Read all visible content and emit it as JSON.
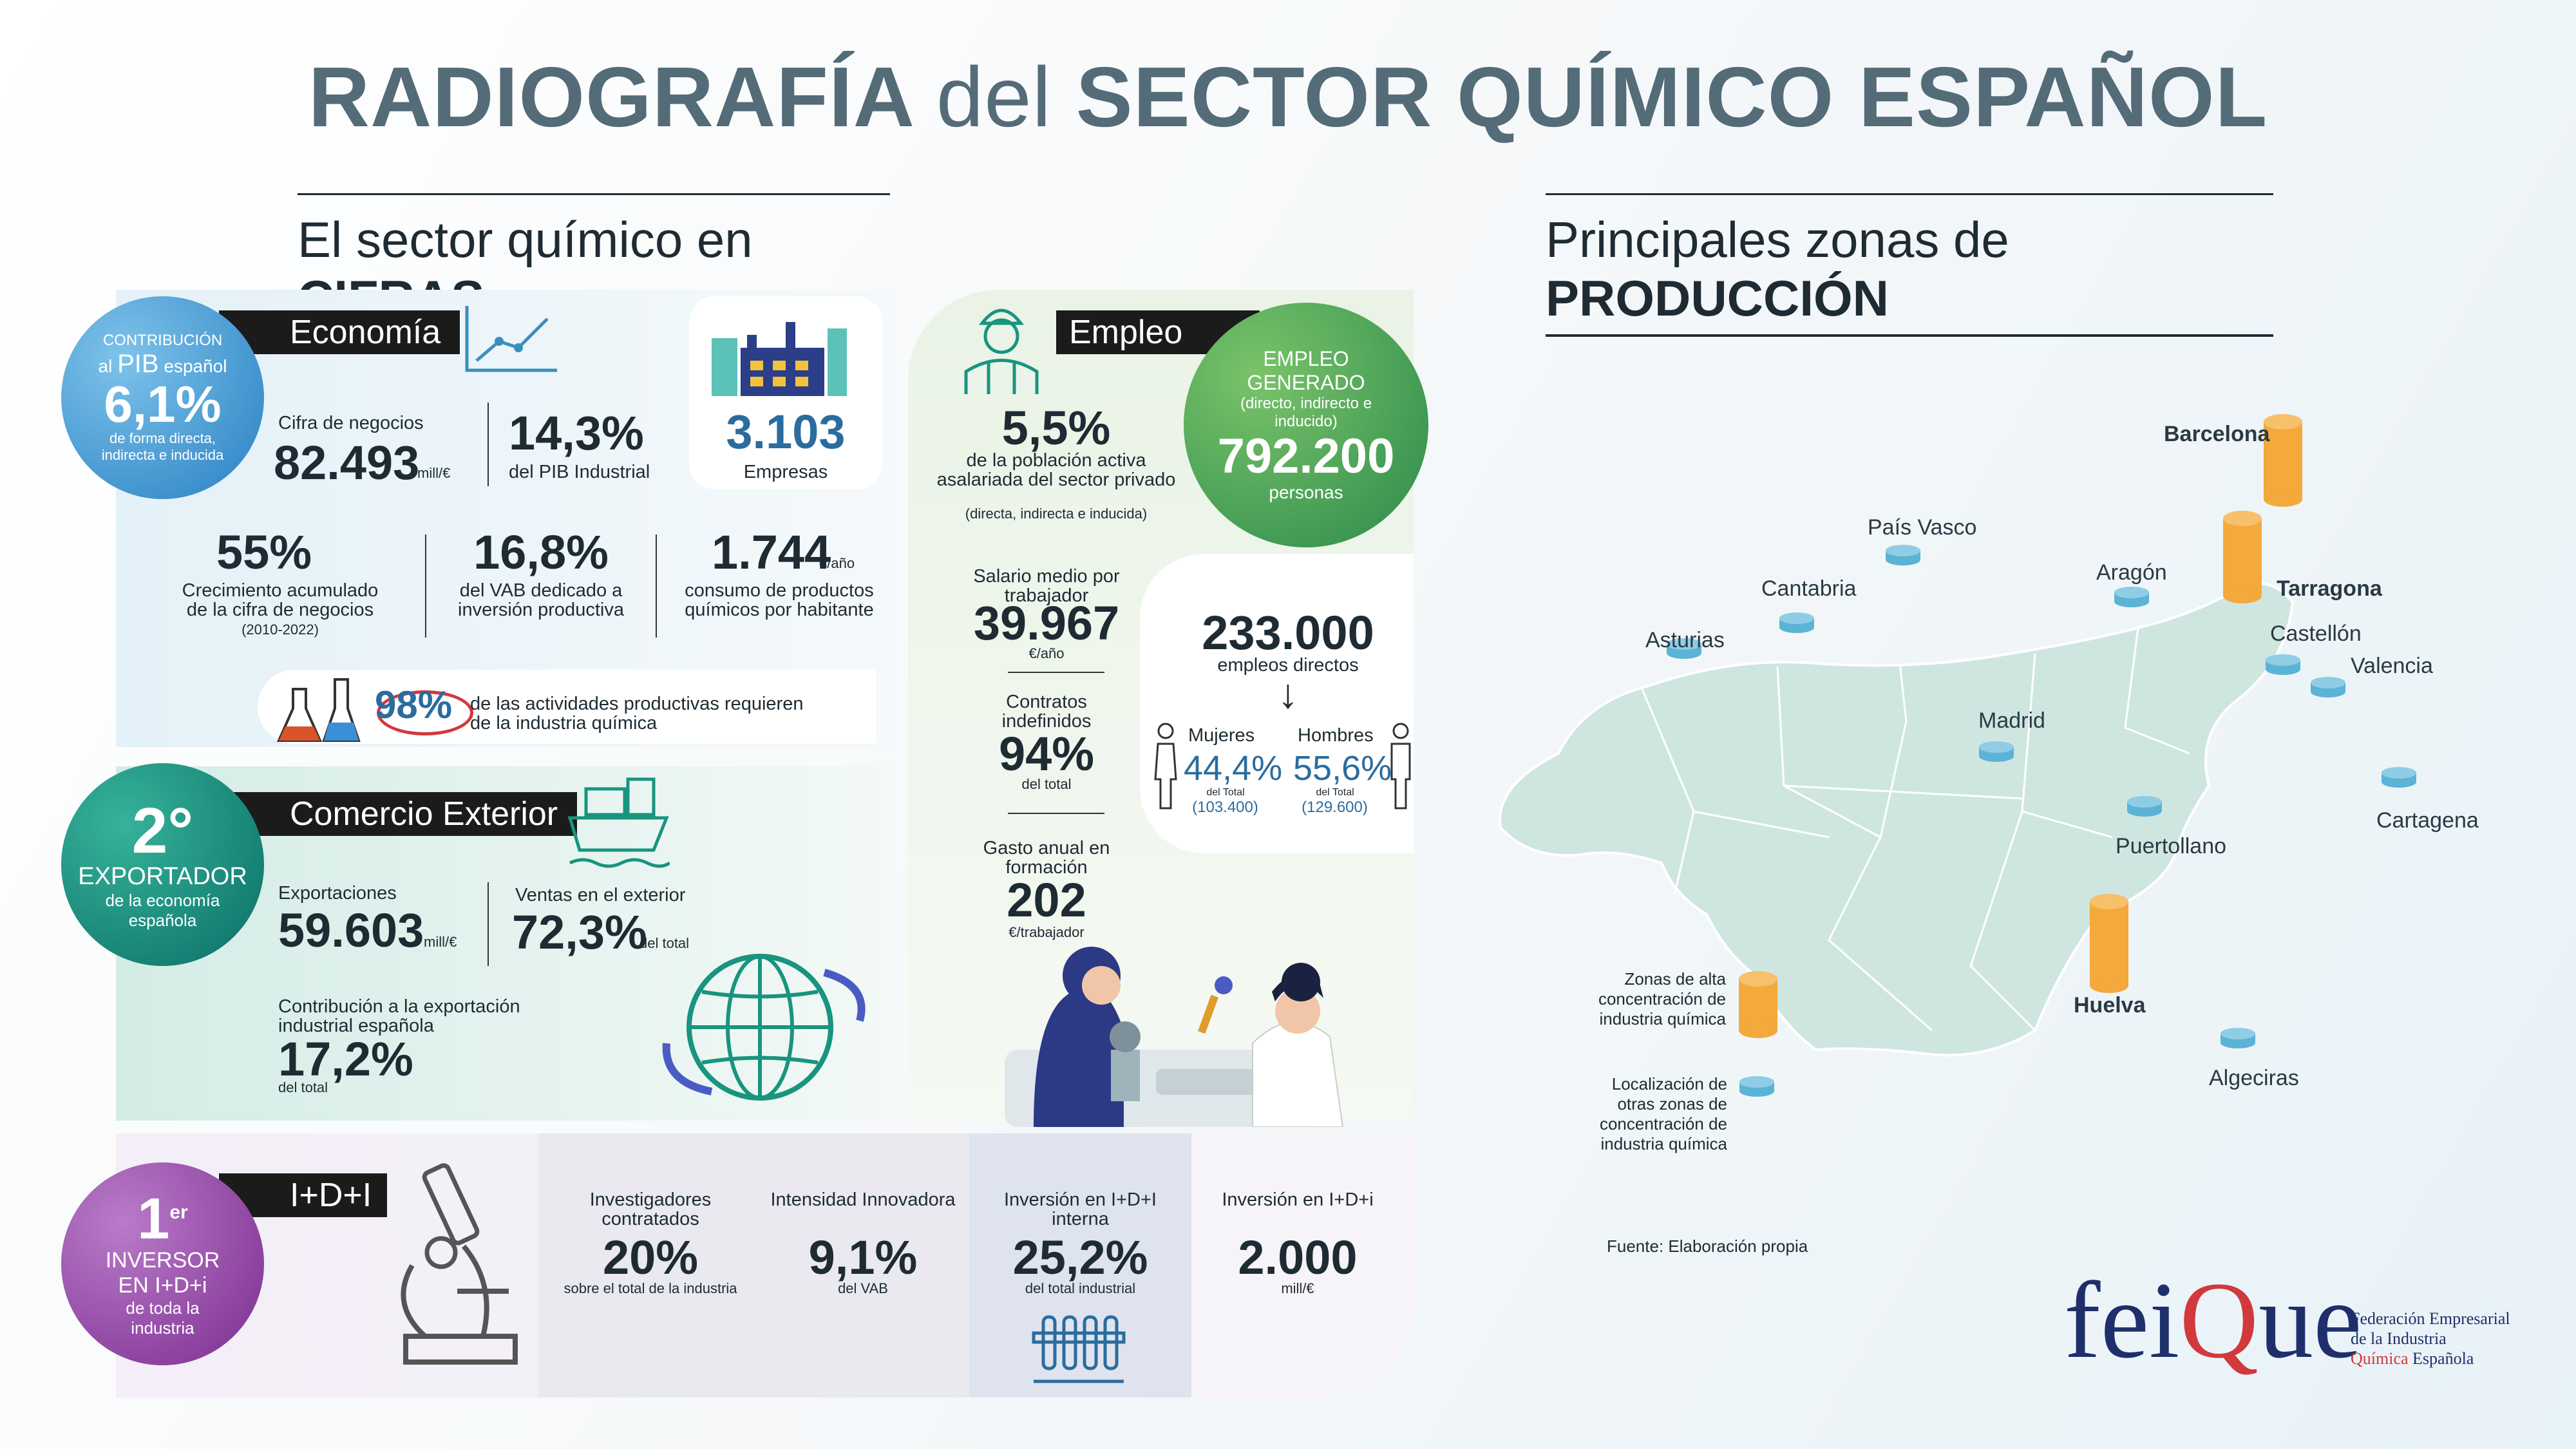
{
  "title": {
    "part1": "RADIOGRAFÍA",
    "part2": "del",
    "part3": "SECTOR QUÍMICO ESPAÑOL"
  },
  "left_header": {
    "text": "El sector químico en",
    "bold": "CIFRAS"
  },
  "right_header": {
    "text": "Principales zonas de",
    "bold": "PRODUCCIÓN"
  },
  "economia": {
    "label": "Economía",
    "badge": {
      "top": "CONTRIBUCIÓN",
      "mid1": "al",
      "pib": "PIB",
      "mid2": "español",
      "value": "6,1%",
      "bottom": "de forma directa, indirecta e inducida"
    },
    "cifra_label": "Cifra de negocios",
    "cifra_value": "82.493",
    "cifra_unit": "mill/€",
    "pib_ind_value": "14,3%",
    "pib_ind_label": "del PIB Industrial",
    "empresas_value": "3.103",
    "empresas_label": "Empresas",
    "crec_value": "55%",
    "crec_label": "Crecimiento acumulado de la cifra de negocios",
    "crec_sub": "(2010-2022)",
    "vab_value": "16,8%",
    "vab_label": "del VAB dedicado a inversión productiva",
    "consumo_value": "1.744",
    "consumo_unit": "€/año",
    "consumo_label": "consumo de productos químicos por habitante",
    "pct_value": "98%",
    "pct_label": "de las actividades productivas requieren de la industria química"
  },
  "comercio": {
    "label": "Comercio Exterior",
    "badge": {
      "value": "2°",
      "title": "EXPORTADOR",
      "sub": "de la economía española"
    },
    "export_label": "Exportaciones",
    "export_value": "59.603",
    "export_unit": "mill/€",
    "ventas_label": "Ventas en el exterior",
    "ventas_value": "72,3%",
    "ventas_unit": "del total",
    "contrib_label": "Contribución a la exportación industrial española",
    "contrib_value": "17,2%",
    "contrib_unit": "del total"
  },
  "empleo": {
    "label": "Empleo",
    "badge": {
      "title": "EMPLEO GENERADO",
      "sub": "(directo, indirecto e inducido)",
      "value": "792.200",
      "unit": "personas"
    },
    "pobl_value": "5,5%",
    "pobl_label": "de la población activa asalariada del sector privado",
    "pobl_sub": "(directa, indirecta e inducida)",
    "salario_label": "Salario medio por trabajador",
    "salario_value": "39.967",
    "salario_unit": "€/año",
    "contratos_label": "Contratos indefinidos",
    "contratos_value": "94%",
    "contratos_unit": "del total",
    "gasto_label": "Gasto anual en formación",
    "gasto_value": "202",
    "gasto_unit": "€/trabajador",
    "directos_value": "233.000",
    "directos_label": "empleos directos",
    "arrow": "↓",
    "mujeres_label": "Mujeres",
    "mujeres_value": "44,4%",
    "mujeres_sub": "del Total",
    "mujeres_count": "(103.400)",
    "hombres_label": "Hombres",
    "hombres_value": "55,6%",
    "hombres_sub": "del Total",
    "hombres_count": "(129.600)"
  },
  "idi": {
    "label": "I+D+I",
    "badge": {
      "value": "1",
      "sup": "er",
      "title": "INVERSOR EN I+D+i",
      "sub": "de toda la industria"
    },
    "cols": [
      {
        "label": "Investigadores contratados",
        "value": "20%",
        "unit": "sobre el total de la industria"
      },
      {
        "label": "Intensidad Innovadora",
        "value": "9,1%",
        "unit": "del VAB"
      },
      {
        "label": "Inversión en I+D+I interna",
        "value": "25,2%",
        "unit": "del total industrial"
      },
      {
        "label": "Inversión en I+D+i",
        "value": "2.000",
        "unit": "mill/€"
      }
    ]
  },
  "map": {
    "places": [
      {
        "name": "Barcelona",
        "bold": true
      },
      {
        "name": "País Vasco",
        "bold": false
      },
      {
        "name": "Aragón",
        "bold": false
      },
      {
        "name": "Cantabria",
        "bold": false
      },
      {
        "name": "Tarragona",
        "bold": true
      },
      {
        "name": "Asturias",
        "bold": false
      },
      {
        "name": "Castellón",
        "bold": false
      },
      {
        "name": "Valencia",
        "bold": false
      },
      {
        "name": "Madrid",
        "bold": false
      },
      {
        "name": "Cartagena",
        "bold": false
      },
      {
        "name": "Puertollano",
        "bold": false
      },
      {
        "name": "Huelva",
        "bold": true
      },
      {
        "name": "Algeciras",
        "bold": false
      }
    ],
    "legend_high": "Zonas de alta concentración de industria química",
    "legend_other": "Localización de otras zonas de concentración de industria química",
    "source": "Fuente: Elaboración propia",
    "colors": {
      "land": "#cfe6e0",
      "high": "#f3a93b",
      "other": "#5bb3d6"
    }
  },
  "logo": {
    "brand_a": "fei",
    "brand_b": "Q",
    "brand_c": "ue",
    "line1": "Federación Empresarial",
    "line2": "de la Industria",
    "line3a": "Química",
    "line3b": "Española"
  }
}
